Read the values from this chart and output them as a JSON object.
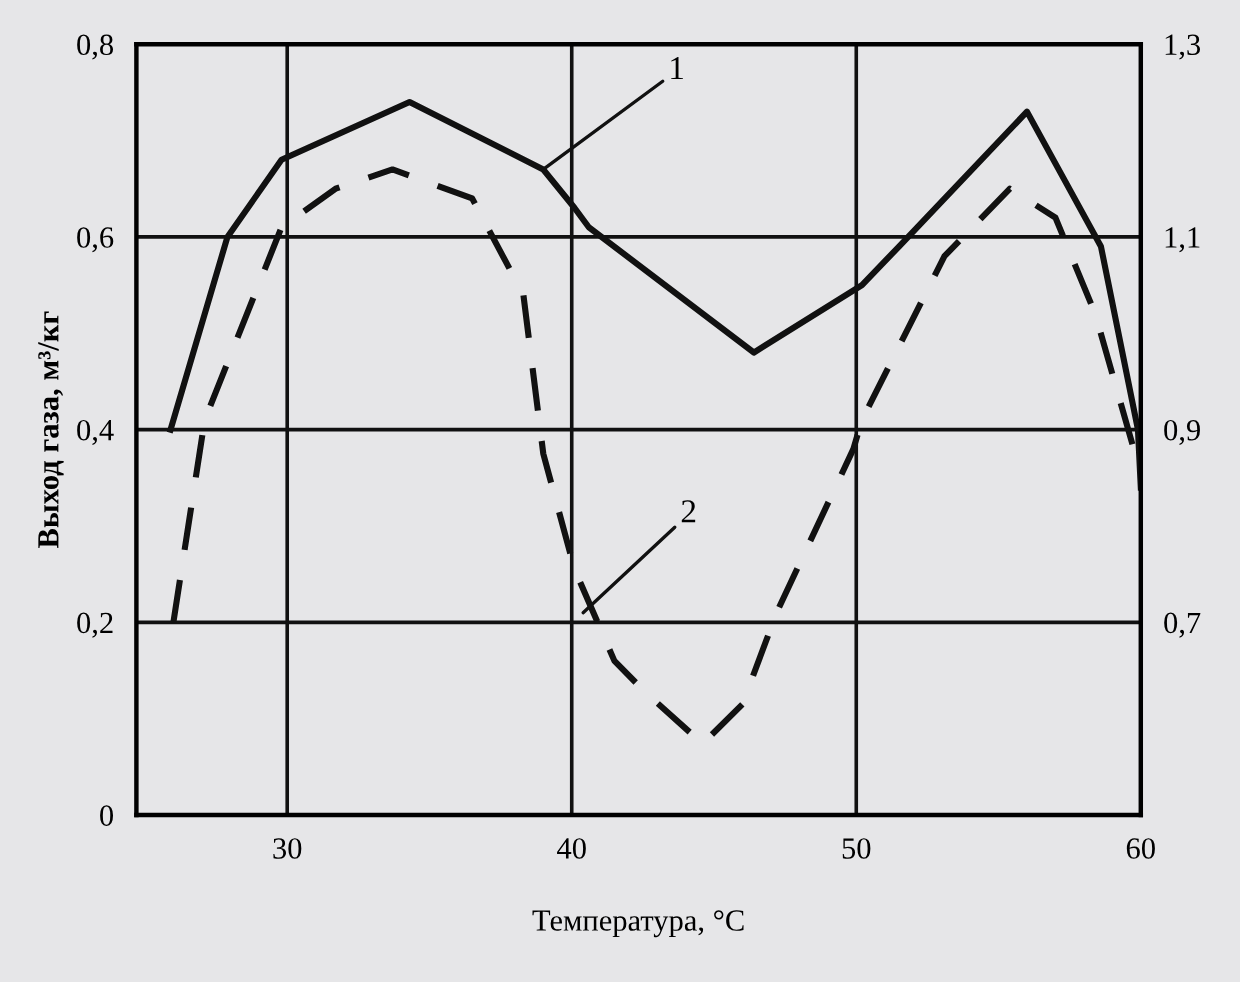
{
  "chart_data": {
    "type": "line",
    "xlabel": "Температура, °С",
    "ylabel": "Выход газа, м³/кг",
    "xlim": [
      24.7,
      60
    ],
    "xticks": [
      30,
      40,
      50,
      60
    ],
    "ylim": [
      0,
      0.8
    ],
    "yticks": [
      {
        "value": 0,
        "label": "0"
      },
      {
        "value": 0.2,
        "label": "0,2"
      },
      {
        "value": 0.4,
        "label": "0,4"
      },
      {
        "value": 0.6,
        "label": "0,6"
      },
      {
        "value": 0.8,
        "label": "0,8"
      }
    ],
    "y2lim": [
      0.5,
      1.3
    ],
    "y2ticks": [
      {
        "value": 0.7,
        "label": "0,7"
      },
      {
        "value": 0.9,
        "label": "0,9"
      },
      {
        "value": 1.1,
        "label": "1,1"
      },
      {
        "value": 1.3,
        "label": "1,3"
      }
    ],
    "grid": true,
    "marker": "none",
    "series": [
      {
        "color": "#111111",
        "line_style": "solid",
        "x": [
          25.9,
          27.9,
          29.8,
          34.3,
          39.0,
          40.1,
          40.6,
          46.4,
          50.2,
          51.5,
          56.0,
          58.6,
          59.9,
          60.0
        ],
        "values": [
          0.4,
          0.6,
          0.68,
          0.74,
          0.67,
          0.63,
          0.61,
          0.48,
          0.55,
          0.59,
          0.73,
          0.59,
          0.4,
          0.34
        ]
      },
      {
        "color": "#111111",
        "line_style": "dashed",
        "x": [
          26.0,
          27.1,
          29.8,
          31.7,
          33.7,
          36.5,
          38.3,
          39.0,
          40.1,
          41.5,
          42.6,
          44.6,
          46.0,
          47.2,
          49.9,
          50.2,
          53.1,
          55.4,
          57.0,
          58.4,
          59.8
        ],
        "values": [
          0.2,
          0.41,
          0.61,
          0.65,
          0.67,
          0.64,
          0.54,
          0.375,
          0.255,
          0.16,
          0.127,
          0.074,
          0.115,
          0.21,
          0.38,
          0.41,
          0.58,
          0.65,
          0.62,
          0.52,
          0.375
        ]
      }
    ],
    "annotations": [
      {
        "text": "1",
        "x": 39.0,
        "y": 0.67
      },
      {
        "text": "2",
        "x": 40.4,
        "y": 0.21
      }
    ]
  }
}
